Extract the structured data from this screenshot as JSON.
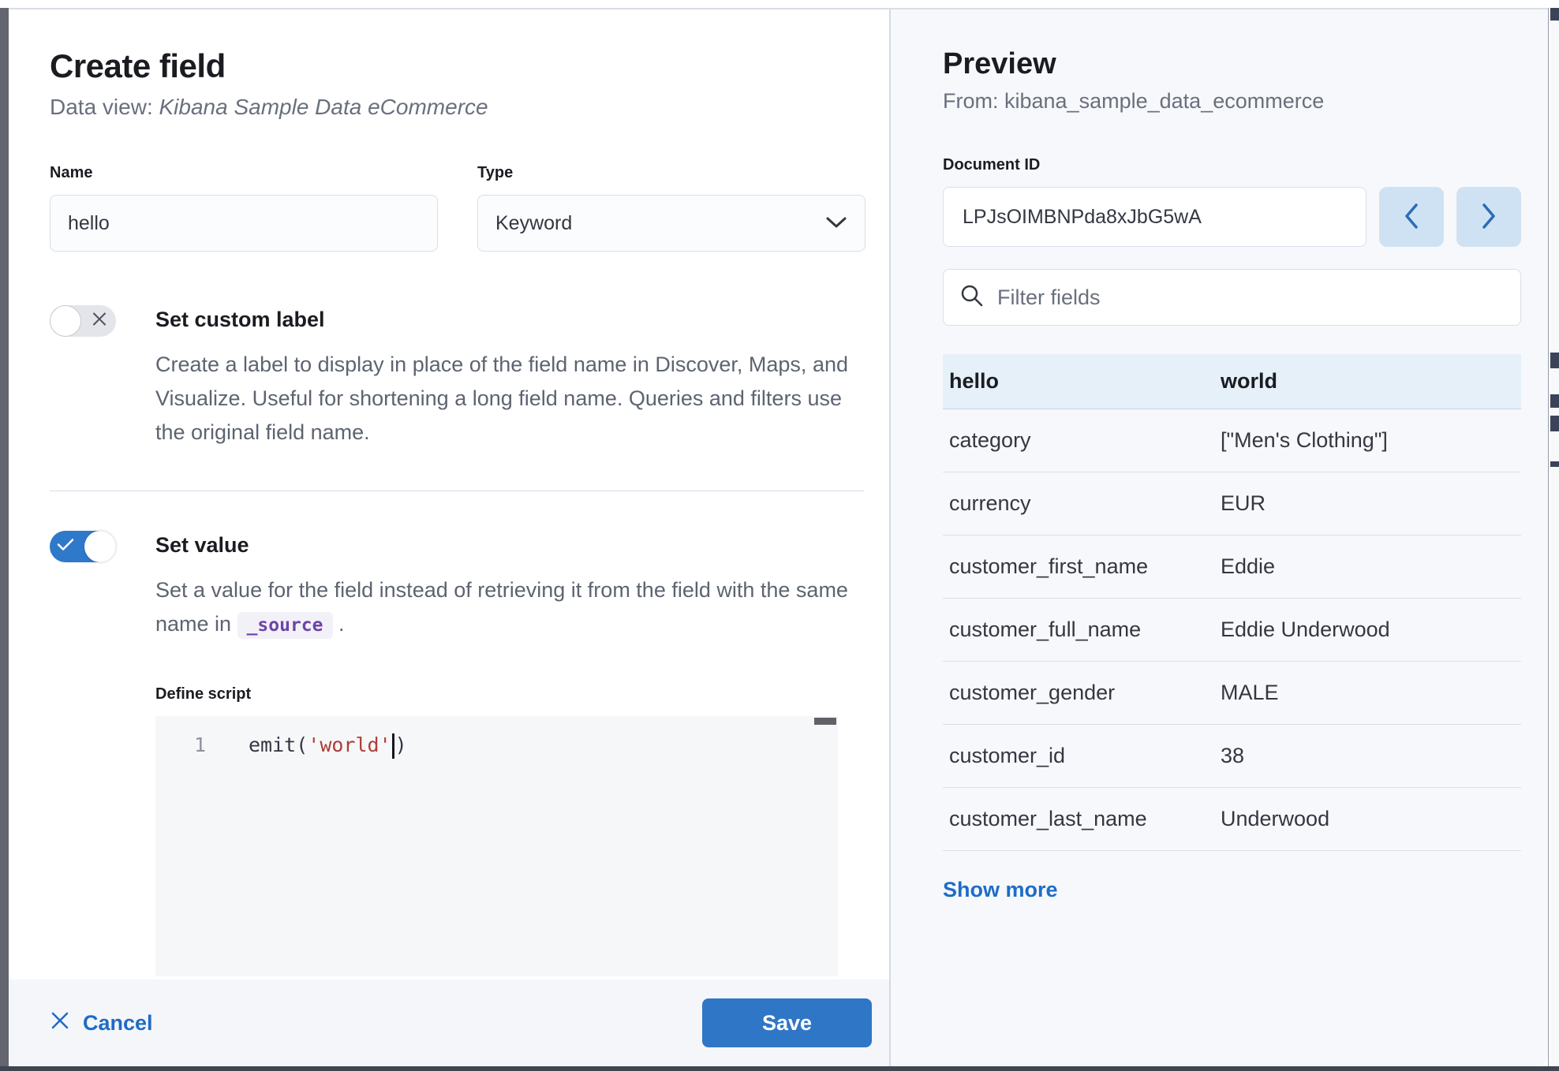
{
  "left_panel": {
    "title": "Create field",
    "subtitle_prefix": "Data view: ",
    "data_view_name": "Kibana Sample Data eCommerce",
    "name_field": {
      "label": "Name",
      "value": "hello"
    },
    "type_field": {
      "label": "Type",
      "value": "Keyword"
    },
    "custom_label_section": {
      "title": "Set custom label",
      "toggle_state": "off",
      "description": "Create a label to display in place of the field name in Discover, Maps, and Visualize. Useful for shortening a long field name. Queries and filters use the original field name."
    },
    "set_value_section": {
      "title": "Set value",
      "toggle_state": "on",
      "description_before_code": "Set a value for the field instead of retrieving it from the field with the same name in ",
      "code": "_source",
      "description_after_code": " ."
    },
    "script_editor": {
      "label": "Define script",
      "line_number": "1",
      "code_prefix": "emit(",
      "code_string": "'world'",
      "code_suffix": ")"
    },
    "footer": {
      "cancel_label": "Cancel",
      "save_label": "Save"
    }
  },
  "preview_panel": {
    "title": "Preview",
    "from_label": "From: kibana_sample_data_ecommerce",
    "document_id": {
      "label": "Document ID",
      "value": "LPJsOIMBNPda8xJbG5wA"
    },
    "filter_placeholder": "Filter fields",
    "table_header": {
      "field": "hello",
      "value": "world"
    },
    "fields": [
      {
        "name": "category",
        "value": "[\"Men's Clothing\"]"
      },
      {
        "name": "currency",
        "value": "EUR"
      },
      {
        "name": "customer_first_name",
        "value": "Eddie"
      },
      {
        "name": "customer_full_name",
        "value": "Eddie Underwood"
      },
      {
        "name": "customer_gender",
        "value": "MALE"
      },
      {
        "name": "customer_id",
        "value": "38"
      },
      {
        "name": "customer_last_name",
        "value": "Underwood"
      }
    ],
    "show_more_label": "Show more"
  },
  "colors": {
    "primary_blue": "#2f76c6",
    "link_blue": "#1c6dc9",
    "toggle_on": "#2f79ca",
    "nav_button_bg": "#cfe2f3",
    "table_highlight": "#e6f0f9",
    "code_string_red": "#ad3e36",
    "inline_code_purple": "#6d44a8",
    "panel_bg": "#f7f8fb",
    "footer_bg": "#f4f6fa"
  }
}
